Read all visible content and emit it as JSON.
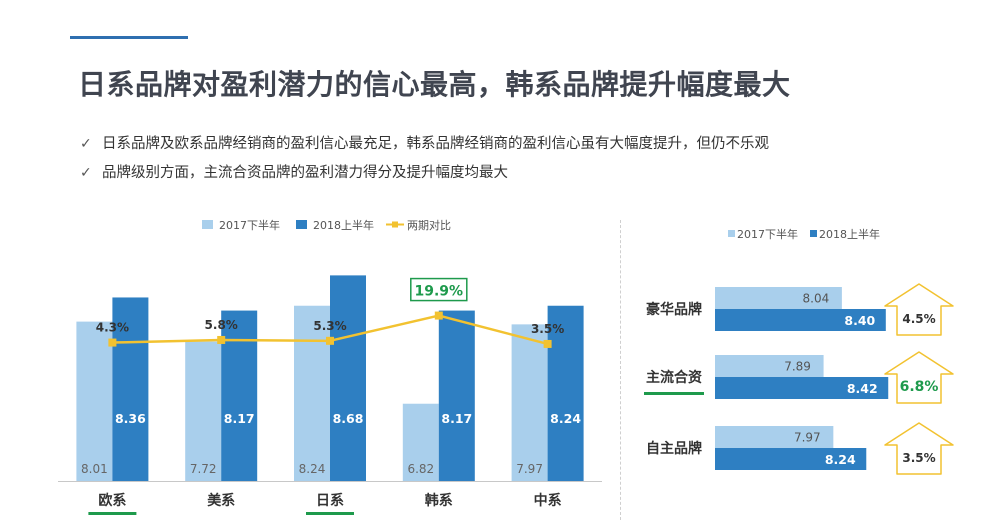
{
  "title": "日系品牌对盈利潜力的信心最高，韩系品牌提升幅度最大",
  "bullets": [
    "日系品牌及欧系品牌经销商的盈利信心最充足，韩系品牌经销商的盈利信心虽有大幅度提升，但仍不乐观",
    "品牌级别方面，主流合资品牌的盈利潜力得分及提升幅度均最大"
  ],
  "check_mark": "✓",
  "colors": {
    "light_bar": "#a9cfec",
    "dark_bar": "#2e7fc2",
    "line": "#f2c230",
    "highlight_green": "#1e9a4c",
    "arrow_border": "#f2c230"
  },
  "chart_data": [
    {
      "type": "bar",
      "categories": [
        "欧系",
        "美系",
        "日系",
        "韩系",
        "中系"
      ],
      "series": [
        {
          "name": "2017下半年",
          "values": [
            8.01,
            7.72,
            8.24,
            6.82,
            7.97
          ]
        },
        {
          "name": "2018上半年",
          "values": [
            8.36,
            8.17,
            8.68,
            8.17,
            8.24
          ]
        }
      ],
      "line_series": {
        "name": "两期对比",
        "values": [
          4.3,
          5.8,
          5.3,
          19.9,
          3.5
        ],
        "labels": [
          "4.3%",
          "5.8%",
          "5.3%",
          "19.9%",
          "3.5%"
        ]
      },
      "highlighted_categories": [
        "欧系",
        "日系"
      ],
      "highlighted_point": "韩系",
      "legend": "top",
      "grid": false
    },
    {
      "type": "bar",
      "orientation": "horizontal",
      "categories": [
        "豪华品牌",
        "主流合资",
        "自主品牌"
      ],
      "series": [
        {
          "name": "2017下半年",
          "values": [
            8.04,
            7.89,
            7.97
          ]
        },
        {
          "name": "2018上半年",
          "values": [
            8.4,
            8.42,
            8.24
          ]
        }
      ],
      "change_labels": [
        "4.5%",
        "6.8%",
        "3.5%"
      ],
      "highlighted_category": "主流合资",
      "legend": "top",
      "grid": false
    }
  ]
}
